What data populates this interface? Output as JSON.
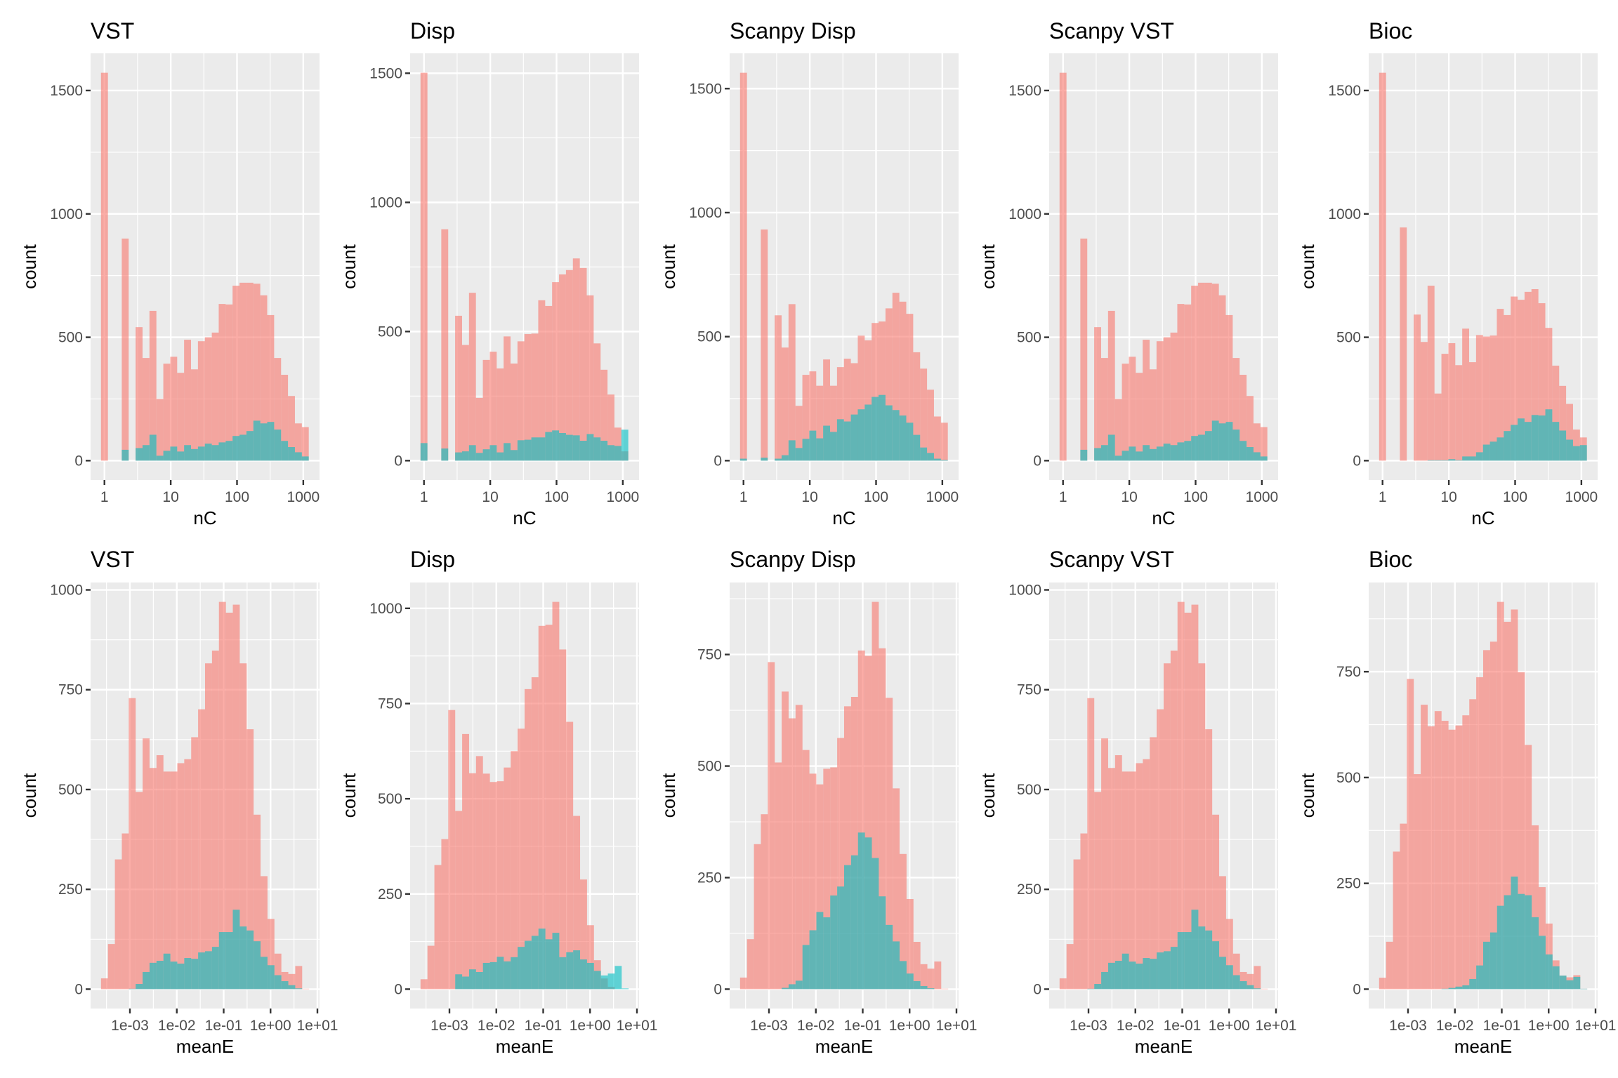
{
  "figure": {
    "layout": "2 rows x 5 columns of overlaid histograms",
    "fill_colors": {
      "group_a": "#F8766D",
      "group_b": "#00BFC4"
    },
    "fill_alpha": 0.6,
    "panel_background": "#EBEBEB",
    "grid_color": "#FFFFFF"
  },
  "chart_data": [
    {
      "type": "bar",
      "subtype": "histogram-overlay",
      "title": "VST",
      "xlabel": "nC",
      "ylabel": "count",
      "x_scale": "log10",
      "xticks": [
        1,
        10,
        100,
        1000
      ],
      "xtick_labels": [
        "1",
        "10",
        "100",
        "1000"
      ],
      "yticks": [
        0,
        500,
        1000,
        1500
      ],
      "ytick_labels": [
        "0",
        "500",
        "1000",
        "1500"
      ],
      "bin_log10_start": 0,
      "bin_log10_width": 0.1045,
      "series": [
        {
          "name": "group_a",
          "color": "#F8766D",
          "values": [
            1572,
            0,
            0,
            900,
            0,
            541,
            416,
            607,
            250,
            393,
            421,
            356,
            490,
            370,
            484,
            500,
            519,
            635,
            633,
            709,
            721,
            721,
            717,
            670,
            590,
            416,
            348,
            262,
            151,
            136
          ]
        },
        {
          "name": "group_b",
          "color": "#00BFC4",
          "values": [
            0,
            0,
            0,
            44,
            0,
            51,
            63,
            105,
            20,
            40,
            57,
            37,
            63,
            47,
            57,
            69,
            63,
            74,
            80,
            100,
            105,
            120,
            162,
            151,
            157,
            126,
            80,
            55,
            34,
            17
          ]
        }
      ]
    },
    {
      "type": "bar",
      "subtype": "histogram-overlay",
      "title": "Disp",
      "xlabel": "nC",
      "ylabel": "count",
      "x_scale": "log10",
      "xticks": [
        1,
        10,
        100,
        1000
      ],
      "xtick_labels": [
        "1",
        "10",
        "100",
        "1000"
      ],
      "yticks": [
        0,
        500,
        1000,
        1500
      ],
      "ytick_labels": [
        "0",
        "500",
        "1000",
        "1500"
      ],
      "bin_log10_start": 0,
      "bin_log10_width": 0.1045,
      "series": [
        {
          "name": "group_a",
          "color": "#F8766D",
          "values": [
            1502,
            0,
            0,
            896,
            0,
            561,
            448,
            650,
            243,
            390,
            422,
            357,
            481,
            376,
            462,
            490,
            492,
            621,
            599,
            691,
            721,
            738,
            783,
            746,
            640,
            454,
            352,
            256,
            128,
            36
          ]
        },
        {
          "name": "group_b",
          "color": "#00BFC4",
          "values": [
            68,
            0,
            0,
            47,
            0,
            32,
            36,
            60,
            30,
            44,
            60,
            32,
            68,
            41,
            79,
            81,
            90,
            90,
            111,
            117,
            107,
            100,
            98,
            77,
            103,
            90,
            77,
            60,
            57,
            120
          ]
        }
      ]
    },
    {
      "type": "bar",
      "subtype": "histogram-overlay",
      "title": "Scanpy Disp",
      "xlabel": "nC",
      "ylabel": "count",
      "x_scale": "log10",
      "xticks": [
        1,
        10,
        100,
        1000
      ],
      "xtick_labels": [
        "1",
        "10",
        "100",
        "1000"
      ],
      "yticks": [
        0,
        500,
        1000,
        1500
      ],
      "ytick_labels": [
        "0",
        "500",
        "1000",
        "1500"
      ],
      "bin_log10_start": 0,
      "bin_log10_width": 0.1045,
      "series": [
        {
          "name": "group_a",
          "color": "#F8766D",
          "values": [
            1564,
            0,
            0,
            932,
            0,
            586,
            456,
            631,
            221,
            346,
            360,
            302,
            408,
            302,
            377,
            411,
            393,
            504,
            485,
            555,
            561,
            614,
            677,
            641,
            592,
            437,
            371,
            286,
            178,
            153
          ]
        },
        {
          "name": "group_b",
          "color": "#00BFC4",
          "values": [
            8,
            0,
            0,
            12,
            0,
            8,
            22,
            82,
            51,
            88,
            121,
            90,
            141,
            116,
            167,
            158,
            186,
            207,
            226,
            257,
            265,
            223,
            204,
            182,
            153,
            104,
            53,
            31,
            8,
            3
          ]
        }
      ]
    },
    {
      "type": "bar",
      "subtype": "histogram-overlay",
      "title": "Scanpy VST",
      "xlabel": "nC",
      "ylabel": "count",
      "x_scale": "log10",
      "xticks": [
        1,
        10,
        100,
        1000
      ],
      "xtick_labels": [
        "1",
        "10",
        "100",
        "1000"
      ],
      "yticks": [
        0,
        500,
        1000,
        1500
      ],
      "ytick_labels": [
        "0",
        "500",
        "1000",
        "1500"
      ],
      "bin_log10_start": 0,
      "bin_log10_width": 0.1045,
      "series": [
        {
          "name": "group_a",
          "color": "#F8766D",
          "values": [
            1572,
            0,
            0,
            900,
            0,
            541,
            416,
            607,
            250,
            393,
            421,
            356,
            490,
            370,
            484,
            500,
            519,
            635,
            633,
            709,
            721,
            721,
            717,
            670,
            590,
            416,
            348,
            262,
            151,
            136
          ]
        },
        {
          "name": "group_b",
          "color": "#00BFC4",
          "values": [
            0,
            0,
            0,
            44,
            0,
            51,
            63,
            105,
            20,
            40,
            57,
            37,
            63,
            47,
            57,
            69,
            63,
            74,
            80,
            100,
            105,
            120,
            162,
            151,
            157,
            126,
            80,
            55,
            34,
            17
          ]
        }
      ]
    },
    {
      "type": "bar",
      "subtype": "histogram-overlay",
      "title": "Bioc",
      "xlabel": "nC",
      "ylabel": "count",
      "x_scale": "log10",
      "xticks": [
        1,
        10,
        100,
        1000
      ],
      "xtick_labels": [
        "1",
        "10",
        "100",
        "1000"
      ],
      "yticks": [
        0,
        500,
        1000,
        1500
      ],
      "ytick_labels": [
        "0",
        "500",
        "1000",
        "1500"
      ],
      "bin_log10_start": 0,
      "bin_log10_width": 0.1045,
      "series": [
        {
          "name": "group_a",
          "color": "#F8766D",
          "values": [
            1572,
            0,
            0,
            945,
            0,
            592,
            481,
            709,
            272,
            433,
            476,
            387,
            535,
            399,
            509,
            503,
            507,
            615,
            590,
            665,
            652,
            684,
            695,
            638,
            538,
            385,
            303,
            230,
            126,
            94
          ]
        },
        {
          "name": "group_b",
          "color": "#00BFC4",
          "values": [
            0,
            0,
            0,
            0,
            0,
            0,
            0,
            2,
            2,
            2,
            6,
            2,
            17,
            17,
            34,
            65,
            77,
            94,
            120,
            145,
            171,
            157,
            185,
            183,
            208,
            157,
            122,
            85,
            59,
            63
          ]
        }
      ]
    },
    {
      "type": "bar",
      "subtype": "histogram-overlay",
      "title": "VST",
      "xlabel": "meanE",
      "ylabel": "count",
      "x_scale": "log10",
      "xticks": [
        0.001,
        0.01,
        0.1,
        1,
        10
      ],
      "xtick_labels": [
        "1e-03",
        "1e-02",
        "1e-01",
        "1e+00",
        "1e+01"
      ],
      "yticks": [
        0,
        250,
        500,
        750,
        1000
      ],
      "ytick_labels": [
        "0",
        "250",
        "500",
        "750",
        "1000"
      ],
      "bin_log10_start": -3.543,
      "bin_log10_width": 0.148,
      "series": [
        {
          "name": "group_a",
          "color": "#F8766D",
          "values": [
            27,
            113,
            325,
            390,
            729,
            494,
            628,
            554,
            586,
            545,
            545,
            566,
            576,
            631,
            701,
            816,
            848,
            970,
            943,
            963,
            816,
            651,
            437,
            283,
            176,
            89,
            43,
            38,
            58,
            1
          ]
        },
        {
          "name": "group_b",
          "color": "#00BFC4",
          "values": [
            0,
            0,
            0,
            0,
            1,
            13,
            43,
            66,
            71,
            89,
            69,
            64,
            78,
            76,
            92,
            95,
            106,
            143,
            143,
            199,
            157,
            147,
            120,
            81,
            60,
            35,
            20,
            10,
            2,
            0
          ]
        }
      ]
    },
    {
      "type": "bar",
      "subtype": "histogram-overlay",
      "title": "Disp",
      "xlabel": "meanE",
      "ylabel": "count",
      "x_scale": "log10",
      "xticks": [
        0.001,
        0.01,
        0.1,
        1,
        10
      ],
      "xtick_labels": [
        "1e-03",
        "1e-02",
        "1e-01",
        "1e+00",
        "1e+01"
      ],
      "yticks": [
        0,
        250,
        500,
        750,
        1000
      ],
      "ytick_labels": [
        "0",
        "250",
        "500",
        "750",
        "1000"
      ],
      "bin_log10_start": -3.543,
      "bin_log10_width": 0.148,
      "series": [
        {
          "name": "group_a",
          "color": "#F8766D",
          "values": [
            26,
            114,
            326,
            394,
            733,
            468,
            670,
            567,
            612,
            566,
            544,
            546,
            582,
            625,
            684,
            788,
            819,
            954,
            957,
            1017,
            892,
            702,
            455,
            288,
            168,
            76,
            28,
            6,
            0,
            0
          ]
        },
        {
          "name": "group_b",
          "color": "#00BFC4",
          "values": [
            0,
            0,
            0,
            0,
            0,
            39,
            33,
            52,
            45,
            69,
            71,
            85,
            73,
            84,
            111,
            127,
            140,
            159,
            131,
            148,
            84,
            97,
            102,
            78,
            69,
            48,
            36,
            41,
            61,
            2
          ]
        }
      ]
    },
    {
      "type": "bar",
      "subtype": "histogram-overlay",
      "title": "Scanpy Disp",
      "xlabel": "meanE",
      "ylabel": "count",
      "x_scale": "log10",
      "xticks": [
        0.001,
        0.01,
        0.1,
        1,
        10
      ],
      "xtick_labels": [
        "1e-03",
        "1e-02",
        "1e-01",
        "1e+00",
        "1e+01"
      ],
      "yticks": [
        0,
        250,
        500,
        750
      ],
      "ytick_labels": [
        "0",
        "250",
        "500",
        "750"
      ],
      "bin_log10_start": -3.543,
      "bin_log10_width": 0.148,
      "series": [
        {
          "name": "group_a",
          "color": "#F8766D",
          "values": [
            26,
            112,
            325,
            392,
            733,
            508,
            667,
            607,
            637,
            536,
            483,
            459,
            494,
            497,
            563,
            634,
            655,
            759,
            747,
            868,
            764,
            653,
            450,
            303,
            202,
            106,
            56,
            46,
            62,
            1
          ]
        },
        {
          "name": "group_b",
          "color": "#00BFC4",
          "values": [
            0,
            0,
            0,
            0,
            0,
            0,
            3,
            11,
            19,
            99,
            132,
            173,
            161,
            210,
            230,
            278,
            300,
            351,
            340,
            294,
            208,
            144,
            107,
            63,
            35,
            18,
            7,
            2,
            0,
            0
          ]
        }
      ]
    },
    {
      "type": "bar",
      "subtype": "histogram-overlay",
      "title": "Scanpy VST",
      "xlabel": "meanE",
      "ylabel": "count",
      "x_scale": "log10",
      "xticks": [
        0.001,
        0.01,
        0.1,
        1,
        10
      ],
      "xtick_labels": [
        "1e-03",
        "1e-02",
        "1e-01",
        "1e+00",
        "1e+01"
      ],
      "yticks": [
        0,
        250,
        500,
        750,
        1000
      ],
      "ytick_labels": [
        "0",
        "250",
        "500",
        "750",
        "1000"
      ],
      "bin_log10_start": -3.543,
      "bin_log10_width": 0.148,
      "series": [
        {
          "name": "group_a",
          "color": "#F8766D",
          "values": [
            27,
            113,
            325,
            390,
            729,
            494,
            628,
            554,
            586,
            545,
            545,
            566,
            576,
            631,
            701,
            816,
            848,
            970,
            943,
            963,
            816,
            651,
            437,
            283,
            176,
            89,
            43,
            38,
            58,
            1
          ]
        },
        {
          "name": "group_b",
          "color": "#00BFC4",
          "values": [
            0,
            0,
            0,
            0,
            1,
            13,
            43,
            66,
            71,
            89,
            69,
            64,
            78,
            76,
            92,
            95,
            106,
            143,
            143,
            199,
            157,
            147,
            120,
            81,
            60,
            35,
            20,
            10,
            2,
            0
          ]
        }
      ]
    },
    {
      "type": "bar",
      "subtype": "histogram-overlay",
      "title": "Bioc",
      "xlabel": "meanE",
      "ylabel": "count",
      "x_scale": "log10",
      "xticks": [
        0.001,
        0.01,
        0.1,
        1,
        10
      ],
      "xtick_labels": [
        "1e-03",
        "1e-02",
        "1e-01",
        "1e+00",
        "1e+01"
      ],
      "yticks": [
        0,
        250,
        500,
        750
      ],
      "ytick_labels": [
        "0",
        "250",
        "500",
        "750"
      ],
      "bin_log10_start": -3.543,
      "bin_log10_width": 0.148,
      "series": [
        {
          "name": "group_a",
          "color": "#F8766D",
          "values": [
            27,
            112,
            325,
            391,
            733,
            508,
            672,
            621,
            657,
            634,
            613,
            623,
            647,
            685,
            737,
            801,
            821,
            915,
            868,
            897,
            749,
            577,
            387,
            241,
            155,
            68,
            32,
            28,
            33,
            1
          ]
        },
        {
          "name": "group_b",
          "color": "#00BFC4",
          "values": [
            0,
            0,
            0,
            0,
            0,
            0,
            0,
            0,
            0,
            1,
            3,
            6,
            9,
            24,
            56,
            112,
            134,
            197,
            222,
            266,
            225,
            222,
            170,
            126,
            82,
            54,
            32,
            21,
            29,
            1
          ]
        }
      ]
    }
  ]
}
